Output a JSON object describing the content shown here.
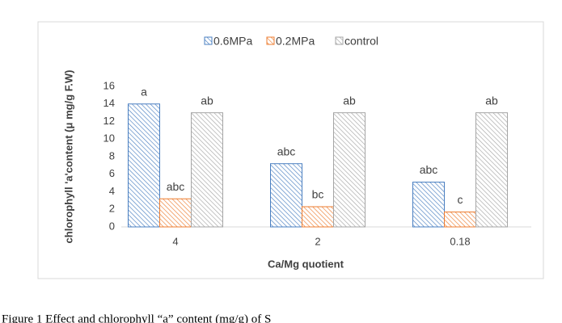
{
  "chart_data": {
    "type": "bar",
    "caption": "Figure 1 Effect and chlorophyll “a” content (mg/g) of S",
    "x_label": "Ca/Mg quotient",
    "y_label": "chlorophyll 'a'content (μ mg/g F.W)",
    "categories": [
      "4",
      "2",
      "0.18"
    ],
    "series": [
      {
        "name": "0.6MPa",
        "color": "#4a7fc1",
        "values": [
          14,
          7.2,
          5.1
        ],
        "letters": [
          "a",
          "abc",
          "abc"
        ]
      },
      {
        "name": "0.2MPa",
        "color": "#ed7d31",
        "values": [
          3.2,
          2.3,
          1.7
        ],
        "letters": [
          "abc",
          "bc",
          "c"
        ]
      },
      {
        "name": "control",
        "color": "#a5a5a5",
        "values": [
          13,
          13,
          13
        ],
        "letters": [
          "ab",
          "ab",
          "ab"
        ]
      }
    ],
    "ylim": [
      0,
      16
    ],
    "yticks": [
      0,
      2,
      4,
      6,
      8,
      10,
      12,
      14,
      16
    ],
    "grid": false,
    "legend": "top"
  }
}
